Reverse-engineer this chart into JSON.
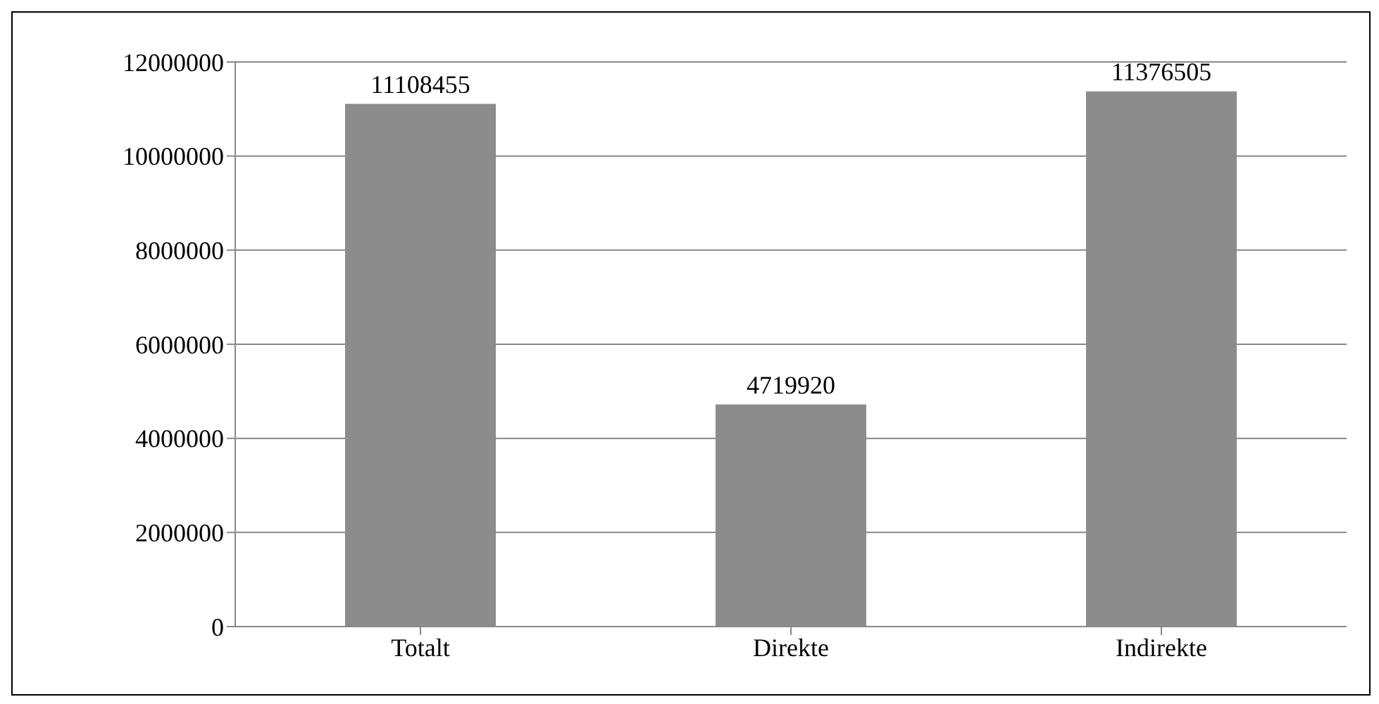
{
  "chart_data": {
    "type": "bar",
    "categories": [
      "Totalt",
      "Direkte",
      "Indirekte"
    ],
    "values": [
      11108455,
      4719920,
      11376505
    ],
    "color": "#8c8c8c",
    "ylim": [
      0,
      12000000
    ],
    "yticks": [
      0,
      2000000,
      4000000,
      6000000,
      8000000,
      10000000,
      12000000
    ],
    "grid": "y",
    "data_labels": true
  }
}
